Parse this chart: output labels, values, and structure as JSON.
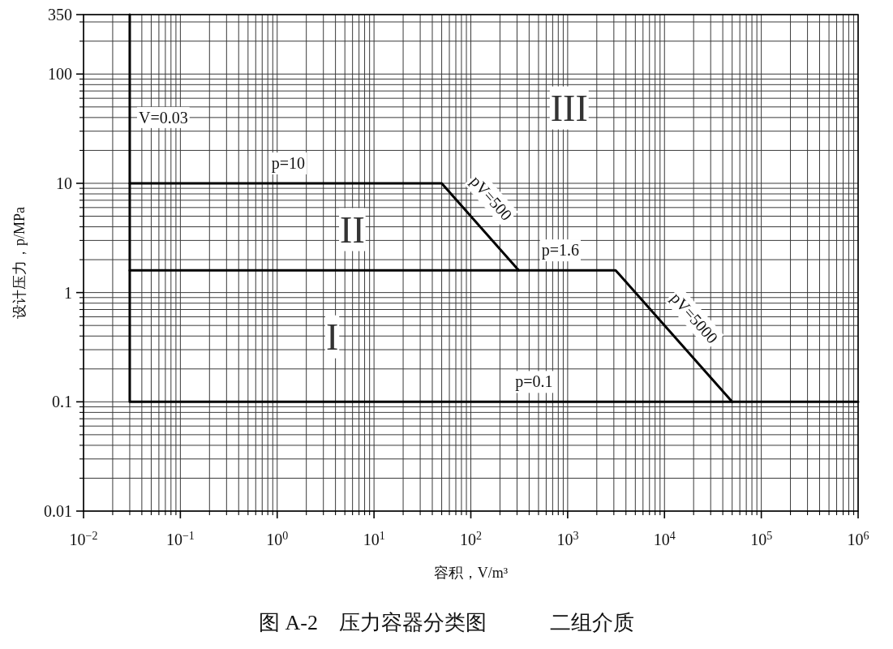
{
  "chart_data": {
    "type": "line",
    "title": "图 A-2　压力容器分类图　　　二组介质",
    "xlabel": "容积，V/m³",
    "ylabel": "设计压力，p/MPa",
    "log": "xy",
    "grid": true,
    "xlim": [
      0.01,
      1000000
    ],
    "ylim": [
      0.01,
      350
    ],
    "xticks": [
      {
        "value": 0.01,
        "label": "10$^{−2}$"
      },
      {
        "value": 0.02,
        "label": null
      },
      {
        "value": 0.03,
        "label": null
      },
      {
        "value": 0.04,
        "label": null
      },
      {
        "value": 0.05,
        "label": null
      },
      {
        "value": 0.06,
        "label": null
      },
      {
        "value": 0.07,
        "label": null
      },
      {
        "value": 0.08,
        "label": null
      },
      {
        "value": 0.09,
        "label": null
      },
      {
        "value": 0.1,
        "label": "10$^{−1}$"
      },
      {
        "value": 0.2,
        "label": null
      },
      {
        "value": 0.3,
        "label": null
      },
      {
        "value": 0.4,
        "label": null
      },
      {
        "value": 0.5,
        "label": null
      },
      {
        "value": 0.6,
        "label": null
      },
      {
        "value": 0.7,
        "label": null
      },
      {
        "value": 0.8,
        "label": null
      },
      {
        "value": 0.9,
        "label": null
      },
      {
        "value": 1,
        "label": "10$^{0}$"
      },
      {
        "value": 2,
        "label": null
      },
      {
        "value": 3,
        "label": null
      },
      {
        "value": 4,
        "label": null
      },
      {
        "value": 5,
        "label": null
      },
      {
        "value": 6,
        "label": null
      },
      {
        "value": 7,
        "label": null
      },
      {
        "value": 8,
        "label": null
      },
      {
        "value": 9,
        "label": null
      },
      {
        "value": 10,
        "label": "10$^{1}$"
      },
      {
        "value": 20,
        "label": null
      },
      {
        "value": 30,
        "label": null
      },
      {
        "value": 40,
        "label": null
      },
      {
        "value": 50,
        "label": null
      },
      {
        "value": 60,
        "label": null
      },
      {
        "value": 70,
        "label": null
      },
      {
        "value": 80,
        "label": null
      },
      {
        "value": 90,
        "label": null
      },
      {
        "value": 100,
        "label": "10$^{2}$"
      },
      {
        "value": 200,
        "label": null
      },
      {
        "value": 300,
        "label": null
      },
      {
        "value": 400,
        "label": null
      },
      {
        "value": 500,
        "label": null
      },
      {
        "value": 600,
        "label": null
      },
      {
        "value": 700,
        "label": null
      },
      {
        "value": 800,
        "label": null
      },
      {
        "value": 900,
        "label": null
      },
      {
        "value": 1000,
        "label": "10$^{3}$"
      },
      {
        "value": 2000,
        "label": null
      },
      {
        "value": 3000,
        "label": null
      },
      {
        "value": 4000,
        "label": null
      },
      {
        "value": 5000,
        "label": null
      },
      {
        "value": 6000,
        "label": null
      },
      {
        "value": 7000,
        "label": null
      },
      {
        "value": 8000,
        "label": null
      },
      {
        "value": 9000,
        "label": null
      },
      {
        "value": 10000,
        "label": "10$^{4}$"
      },
      {
        "value": 20000,
        "label": null
      },
      {
        "value": 30000,
        "label": null
      },
      {
        "value": 40000,
        "label": null
      },
      {
        "value": 50000,
        "label": null
      },
      {
        "value": 60000,
        "label": null
      },
      {
        "value": 70000,
        "label": null
      },
      {
        "value": 80000,
        "label": null
      },
      {
        "value": 90000,
        "label": null
      },
      {
        "value": 100000,
        "label": "10$^{5}$"
      },
      {
        "value": 200000,
        "label": null
      },
      {
        "value": 300000,
        "label": null
      },
      {
        "value": 400000,
        "label": null
      },
      {
        "value": 500000,
        "label": null
      },
      {
        "value": 600000,
        "label": null
      },
      {
        "value": 700000,
        "label": null
      },
      {
        "value": 800000,
        "label": null
      },
      {
        "value": 900000,
        "label": null
      },
      {
        "value": 1000000,
        "label": "10$^{6}$"
      }
    ],
    "yticks": [
      0.01,
      {
        "value": 0.02,
        "label": null
      },
      {
        "value": 0.03,
        "label": null
      },
      {
        "value": 0.04,
        "label": null
      },
      {
        "value": 0.05,
        "label": null
      },
      {
        "value": 0.06,
        "label": null
      },
      {
        "value": 0.07,
        "label": null
      },
      {
        "value": 0.08,
        "label": null
      },
      {
        "value": 0.09,
        "label": null
      },
      0.1,
      {
        "value": 0.2,
        "label": null
      },
      {
        "value": 0.3,
        "label": null
      },
      {
        "value": 0.4,
        "label": null
      },
      {
        "value": 0.5,
        "label": null
      },
      {
        "value": 0.6,
        "label": null
      },
      {
        "value": 0.7,
        "label": null
      },
      {
        "value": 0.8,
        "label": null
      },
      {
        "value": 0.9,
        "label": null
      },
      1,
      {
        "value": 2,
        "label": null
      },
      {
        "value": 3,
        "label": null
      },
      {
        "value": 4,
        "label": null
      },
      {
        "value": 5,
        "label": null
      },
      {
        "value": 6,
        "label": null
      },
      {
        "value": 7,
        "label": null
      },
      {
        "value": 8,
        "label": null
      },
      {
        "value": 9,
        "label": null
      },
      10,
      {
        "value": 20,
        "label": null
      },
      {
        "value": 30,
        "label": null
      },
      {
        "value": 40,
        "label": null
      },
      {
        "value": 50,
        "label": null
      },
      {
        "value": 60,
        "label": null
      },
      {
        "value": 70,
        "label": null
      },
      {
        "value": 80,
        "label": null
      },
      {
        "value": 90,
        "label": null
      },
      100,
      {
        "value": 200,
        "label": null
      },
      {
        "value": 300,
        "label": null
      },
      350
    ],
    "series": [
      {
        "color": "#000000",
        "x": [
          0.03,
          50,
          312.5
        ],
        "values": [
          10,
          10,
          1.6
        ]
      },
      {
        "color": "#000000",
        "x": [
          0.03,
          3125,
          50000
        ],
        "values": [
          1.6,
          1.6,
          0.1
        ]
      },
      {
        "color": "#000000",
        "x": [
          0.03,
          0.03,
          1000000
        ],
        "values": [
          350,
          0.1,
          0.1
        ]
      }
    ],
    "annotations": [
      {
        "text": "V=0.03",
        "x": 0.03,
        "y": 40
      },
      {
        "text": "p=10",
        "x": 1.3,
        "y": 10
      },
      {
        "text": "pV=500",
        "x": 100,
        "y": 5
      },
      {
        "text": "p=1.6",
        "x": 840,
        "y": 1.6
      },
      {
        "text": "pV=5000",
        "x": 12500,
        "y": 0.4
      },
      {
        "text": "p=0.1",
        "x": 450,
        "y": 0.1
      },
      "I",
      "II",
      "III"
    ]
  }
}
